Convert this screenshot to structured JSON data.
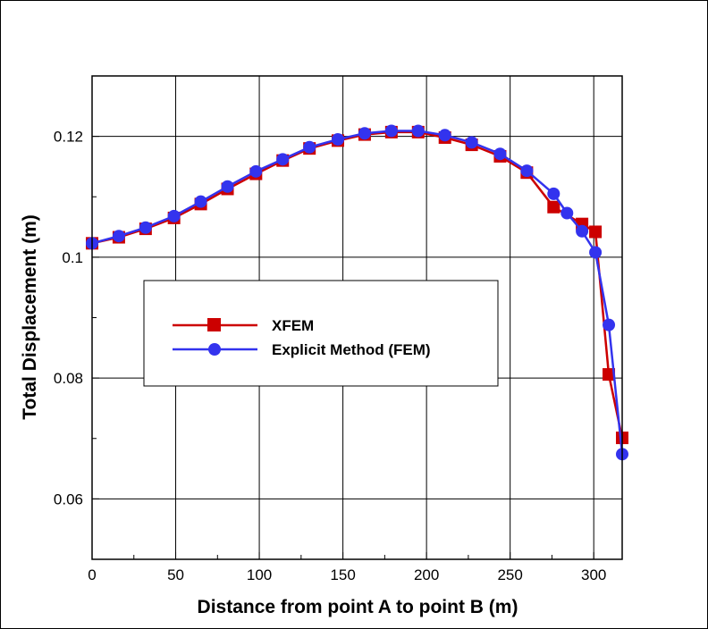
{
  "chart_data": {
    "type": "line",
    "xlabel": "Distance from point A to point B (m)",
    "ylabel": "Total Displacement (m)",
    "xlim": [
      0,
      317
    ],
    "ylim": [
      0.05,
      0.13
    ],
    "xticks": [
      0,
      50,
      100,
      150,
      200,
      250,
      300
    ],
    "xtick_labels": [
      "0",
      "50",
      "100",
      "150",
      "200",
      "250",
      "300"
    ],
    "yticks": [
      0.06,
      0.08,
      0.1,
      0.12
    ],
    "ytick_labels": [
      "0.06",
      "0.08",
      "0.1",
      "0.12"
    ],
    "grid": true,
    "legend_position": "center-left",
    "series": [
      {
        "name": "XFEM",
        "color": "#cc0000",
        "marker": "square",
        "x": [
          0,
          16,
          32,
          49,
          65,
          81,
          98,
          114,
          130,
          147,
          163,
          179,
          195,
          211,
          227,
          244,
          260,
          276,
          293,
          301,
          309,
          317
        ],
        "y": [
          0.1023,
          0.1033,
          0.1047,
          0.1065,
          0.1088,
          0.1113,
          0.1138,
          0.116,
          0.118,
          0.1193,
          0.1203,
          0.1207,
          0.1207,
          0.1198,
          0.1186,
          0.1167,
          0.114,
          0.1083,
          0.1055,
          0.1042,
          0.0806,
          0.0701
        ]
      },
      {
        "name": "Explicit Method (FEM)",
        "color": "#3333ee",
        "marker": "circle",
        "x": [
          0,
          16,
          32,
          49,
          65,
          81,
          98,
          114,
          130,
          147,
          163,
          179,
          195,
          211,
          227,
          244,
          260,
          276,
          284,
          293,
          301,
          309,
          317
        ],
        "y": [
          0.1023,
          0.1035,
          0.1049,
          0.1068,
          0.1092,
          0.1117,
          0.1142,
          0.1162,
          0.1182,
          0.1195,
          0.1205,
          0.1209,
          0.1209,
          0.1202,
          0.119,
          0.1171,
          0.1143,
          0.1105,
          0.1073,
          0.1043,
          0.1008,
          0.0888,
          0.0674
        ]
      }
    ]
  }
}
